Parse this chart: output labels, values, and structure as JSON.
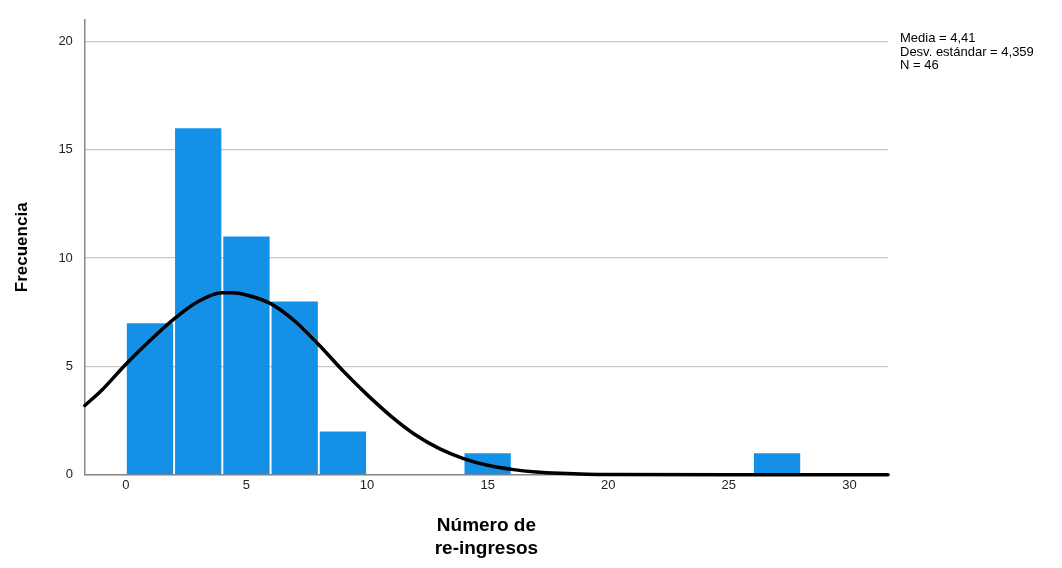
{
  "chart_data": {
    "type": "histogram",
    "xlabel": "Número de\nre-ingresos",
    "ylabel": "Frecuencia",
    "bins": [
      0,
      2,
      4,
      6,
      8,
      10,
      12,
      14,
      16,
      18,
      20,
      22,
      24,
      26,
      28
    ],
    "values": [
      7,
      16,
      11,
      8,
      2,
      0,
      0,
      1,
      0,
      0,
      0,
      0,
      0,
      1
    ],
    "color": "#1490e6",
    "series": [
      {
        "type": "line",
        "color": "#000000",
        "x": [
          -1.7,
          -1,
          0,
          1,
          2,
          3,
          4,
          4.41,
          5,
          6,
          7,
          8,
          9,
          10,
          11,
          12,
          13,
          14,
          15,
          16,
          17,
          18,
          20,
          25,
          31.6
        ],
        "values": [
          3.2,
          3.9,
          5.1,
          6.2,
          7.2,
          8.0,
          8.4,
          8.4,
          8.3,
          7.9,
          7.1,
          6.0,
          4.8,
          3.7,
          2.7,
          1.85,
          1.21,
          0.75,
          0.44,
          0.25,
          0.13,
          0.07,
          0.01,
          0,
          0
        ]
      }
    ],
    "xlim": [
      -1.7,
      31.6
    ],
    "xticks": [
      0,
      5,
      10,
      15,
      20,
      25,
      30
    ],
    "ylim": [
      0,
      21
    ],
    "yticks": [
      0,
      5,
      10,
      15,
      20
    ],
    "grid": "y",
    "marker": "none",
    "line_style": "solid",
    "legend": false,
    "annotations": [
      "Media = 4,41",
      "Desv. estándar = 4,359",
      "N = 46"
    ]
  }
}
